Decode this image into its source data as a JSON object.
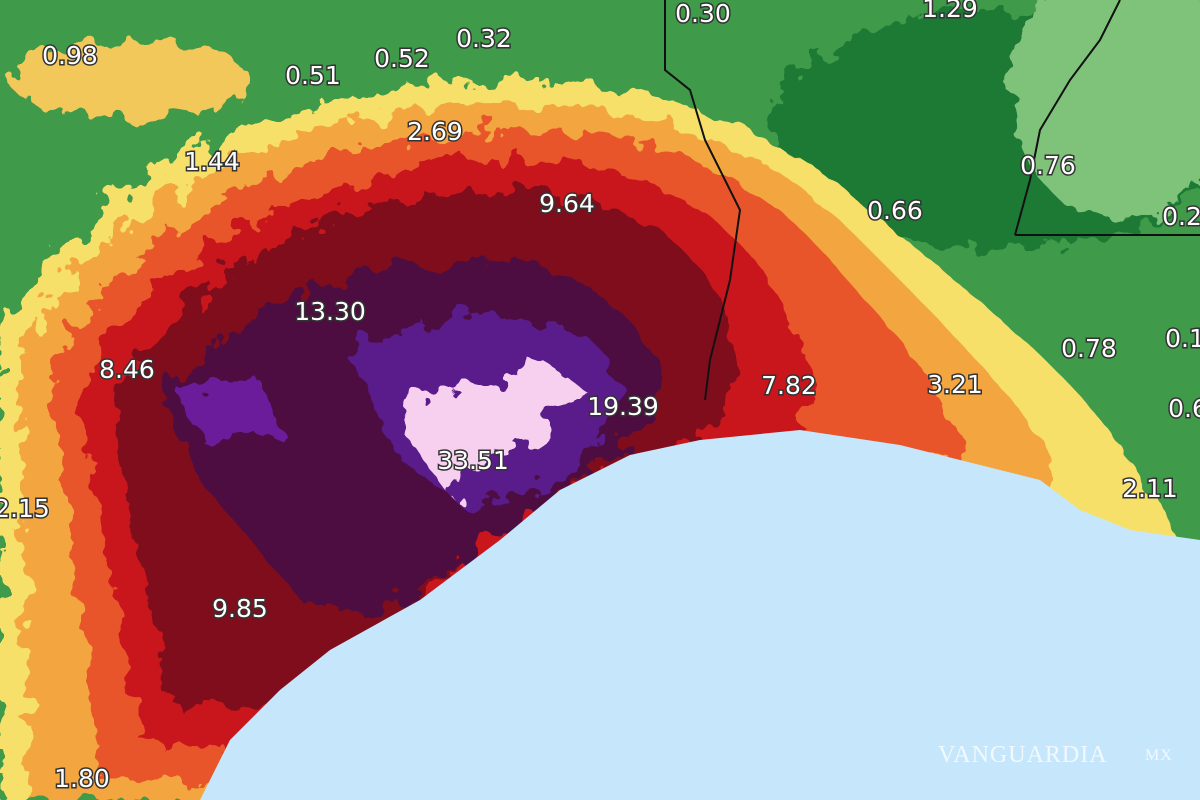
{
  "labels": [
    "0.98",
    "0.51",
    "0.52",
    "0.32",
    "0.30",
    "1.29",
    "2.69",
    "1.44",
    "0.76",
    "0.66",
    "0.2",
    "9.64",
    "13.30",
    "0.78",
    "0.1",
    "8.46",
    "7.82",
    "3.21",
    "19.39",
    "0.6",
    "33.51",
    "2.15",
    "2.11",
    "9.85",
    "1.80"
  ],
  "watermark": {
    "name": "VANGUARDIA",
    "suffix": "MX"
  }
}
